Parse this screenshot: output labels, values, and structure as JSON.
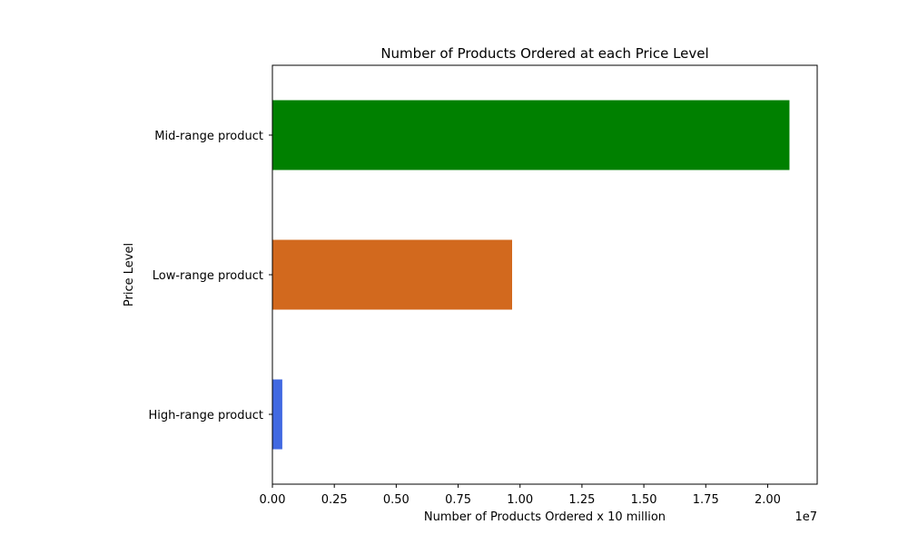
{
  "chart_data": {
    "type": "bar",
    "orientation": "horizontal",
    "title": "Number of Products Ordered at each Price Level",
    "xlabel": "Number of Products Ordered x 10 million",
    "ylabel": "Price Level",
    "offset_label": "1e7",
    "categories": [
      "High-range product",
      "Low-range product",
      "Mid-range product"
    ],
    "values": [
      400000,
      9680000,
      20880000
    ],
    "colors": [
      "#4169e1",
      "#d2691e",
      "#008000"
    ],
    "xlim": [
      0,
      22000000
    ],
    "xticks": [
      0,
      2500000,
      5000000,
      7500000,
      10000000,
      12500000,
      15000000,
      17500000,
      20000000
    ],
    "xtick_labels": [
      "0.00",
      "0.25",
      "0.50",
      "0.75",
      "1.00",
      "1.25",
      "1.50",
      "1.75",
      "2.00"
    ],
    "grid": false,
    "legend": "none"
  }
}
